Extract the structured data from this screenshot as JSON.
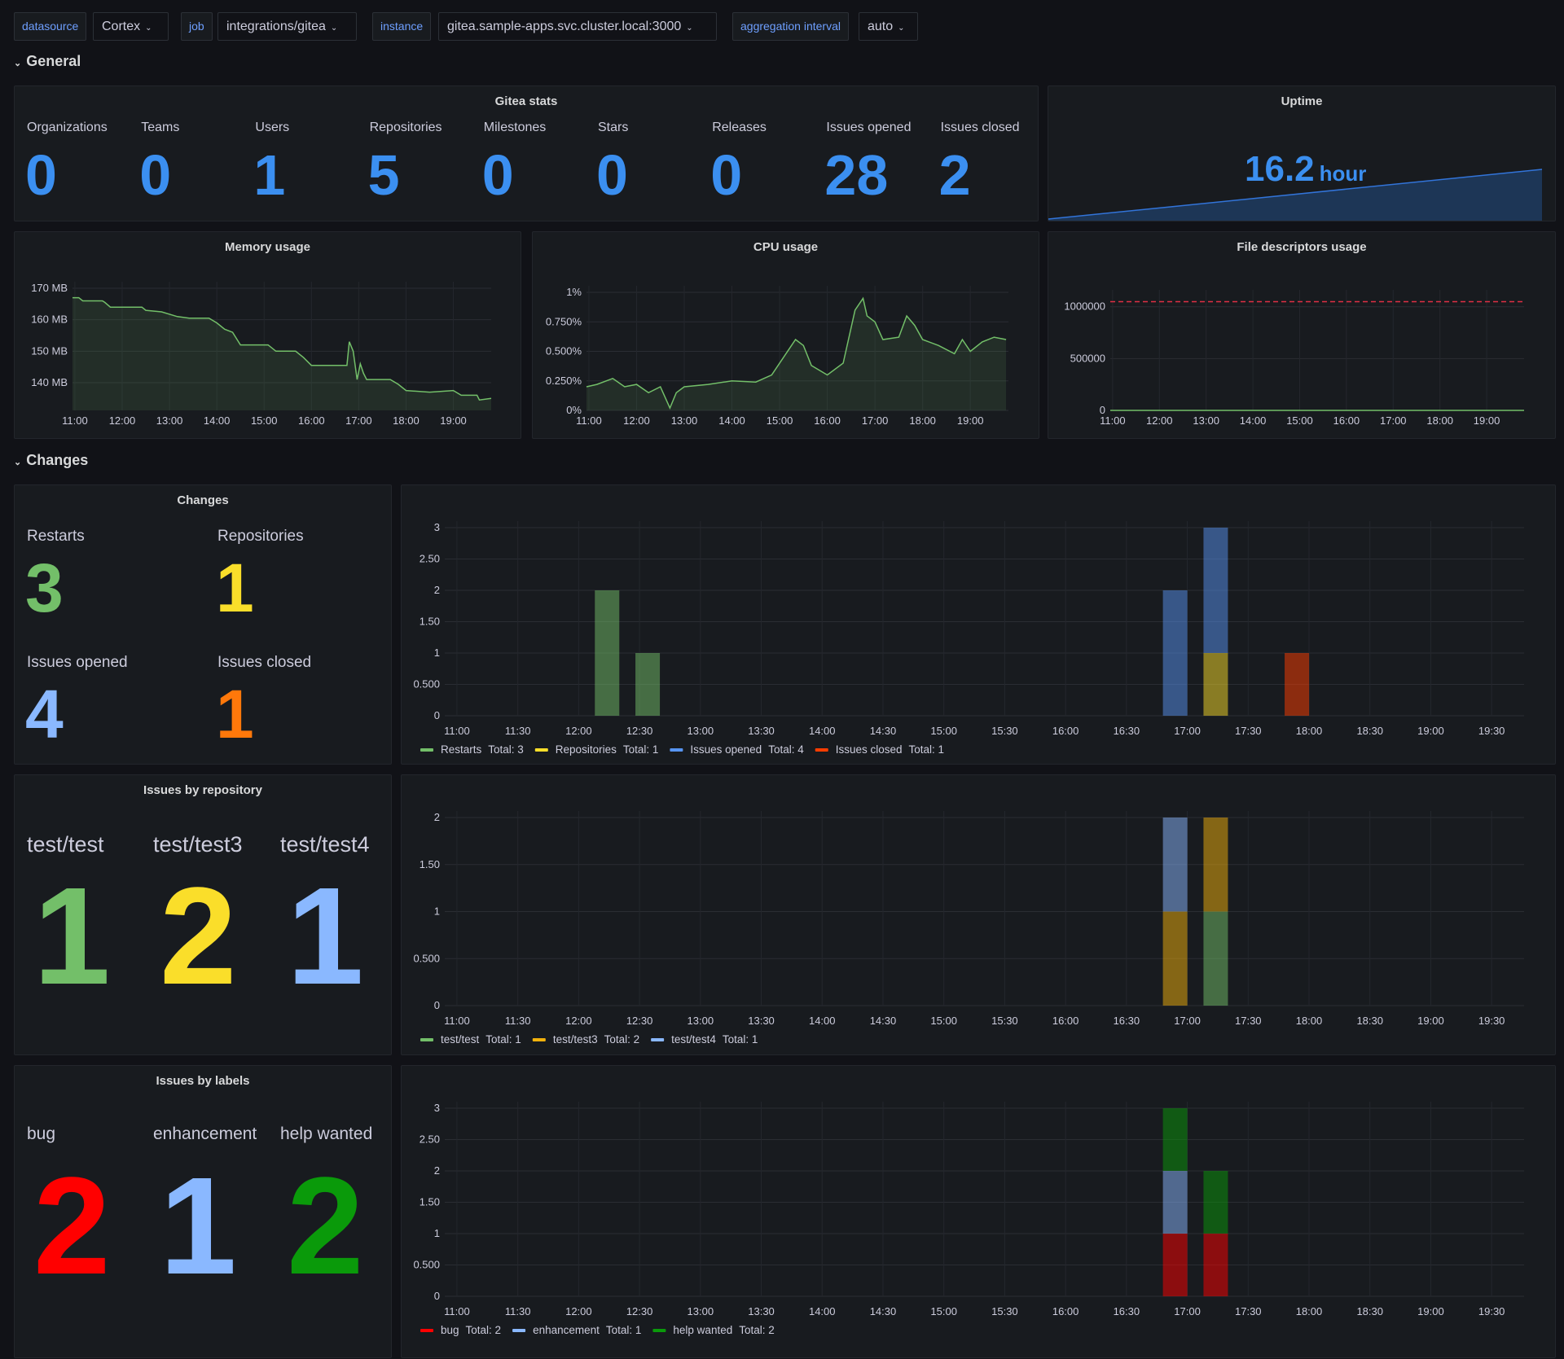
{
  "variables": [
    {
      "label": "datasource",
      "value": "Cortex"
    },
    {
      "label": "job",
      "value": "integrations/gitea"
    },
    {
      "label": "instance",
      "value": "gitea.sample-apps.svc.cluster.local:3000"
    },
    {
      "label": "aggregation interval",
      "value": "auto"
    }
  ],
  "sections": {
    "general": "General",
    "changes": "Changes"
  },
  "gitea_stats": {
    "title": "Gitea stats",
    "color": "#3b8ff0",
    "items": [
      {
        "label": "Organizations",
        "value": "0"
      },
      {
        "label": "Teams",
        "value": "0"
      },
      {
        "label": "Users",
        "value": "1"
      },
      {
        "label": "Repositories",
        "value": "5"
      },
      {
        "label": "Milestones",
        "value": "0"
      },
      {
        "label": "Stars",
        "value": "0"
      },
      {
        "label": "Releases",
        "value": "0"
      },
      {
        "label": "Issues opened",
        "value": "28"
      },
      {
        "label": "Issues closed",
        "value": "2"
      }
    ]
  },
  "uptime": {
    "title": "Uptime",
    "value": "16.2",
    "unit": "hour",
    "color": "#3b8ff0"
  },
  "changes_stat": {
    "title": "Changes",
    "items": [
      {
        "label": "Restarts",
        "value": "3",
        "color": "#73bf69"
      },
      {
        "label": "Repositories",
        "value": "1",
        "color": "#fade2a"
      },
      {
        "label": "Issues opened",
        "value": "4",
        "color": "#8ab8ff"
      },
      {
        "label": "Issues closed",
        "value": "1",
        "color": "#ff780a"
      }
    ]
  },
  "repo_stat": {
    "title": "Issues by repository",
    "items": [
      {
        "label": "test/test",
        "value": "1",
        "color": "#73bf69"
      },
      {
        "label": "test/test3",
        "value": "2",
        "color": "#fade2a"
      },
      {
        "label": "test/test4",
        "value": "1",
        "color": "#8ab8ff"
      }
    ]
  },
  "labels_stat": {
    "title": "Issues by labels",
    "items": [
      {
        "label": "bug",
        "value": "2",
        "color": "#ff0000"
      },
      {
        "label": "enhancement",
        "value": "1",
        "color": "#8ab8ff"
      },
      {
        "label": "help wanted",
        "value": "2",
        "color": "#0a9a0a"
      }
    ]
  },
  "chart_data": [
    {
      "id": "memory",
      "title": "Memory usage",
      "type": "area",
      "color": "#73bf69",
      "xlim": [
        "10:57",
        "19:48"
      ],
      "ylim": [
        131.2,
        170
      ],
      "yticks": [
        {
          "v": 170,
          "label": "170 MB"
        },
        {
          "v": 160,
          "label": "160 MB"
        },
        {
          "v": 150,
          "label": "150 MB"
        },
        {
          "v": 140,
          "label": "140 MB"
        }
      ],
      "xticks": [
        "11:00",
        "12:00",
        "13:00",
        "14:00",
        "15:00",
        "16:00",
        "17:00",
        "18:00",
        "19:00"
      ],
      "x": [
        "10:57",
        "11:05",
        "11:10",
        "11:35",
        "11:38",
        "11:45",
        "12:25",
        "12:30",
        "12:50",
        "13:10",
        "13:25",
        "13:50",
        "14:00",
        "14:10",
        "14:20",
        "14:30",
        "15:05",
        "15:15",
        "15:40",
        "15:50",
        "16:00",
        "16:45",
        "16:48",
        "16:53",
        "16:58",
        "17:02",
        "17:06",
        "17:10",
        "17:40",
        "17:50",
        "18:00",
        "18:30",
        "19:00",
        "19:10",
        "19:30",
        "19:33",
        "19:48"
      ],
      "values": [
        167,
        167,
        166,
        166,
        165.5,
        164,
        164,
        163,
        162.5,
        161,
        160.5,
        160.5,
        159,
        157,
        156,
        152,
        152,
        150,
        150,
        148,
        145.5,
        145.5,
        153,
        150,
        141,
        146,
        143,
        141,
        141,
        139.5,
        137.5,
        137,
        137.5,
        136,
        136,
        134.5,
        135
      ]
    },
    {
      "id": "cpu",
      "title": "CPU usage",
      "type": "area",
      "color": "#73bf69",
      "xlim": [
        "10:57",
        "19:48"
      ],
      "ylim": [
        0,
        1
      ],
      "yticks": [
        {
          "v": 1,
          "label": "1%"
        },
        {
          "v": 0.75,
          "label": "0.750%"
        },
        {
          "v": 0.5,
          "label": "0.500%"
        },
        {
          "v": 0.25,
          "label": "0.250%"
        },
        {
          "v": 0,
          "label": "0%"
        }
      ],
      "xticks": [
        "11:00",
        "12:00",
        "13:00",
        "14:00",
        "15:00",
        "16:00",
        "17:00",
        "18:00",
        "19:00"
      ],
      "x": [
        "10:57",
        "11:10",
        "11:30",
        "11:45",
        "12:00",
        "12:15",
        "12:30",
        "12:42",
        "12:50",
        "13:00",
        "13:30",
        "14:00",
        "14:30",
        "14:50",
        "15:05",
        "15:20",
        "15:30",
        "15:40",
        "16:00",
        "16:20",
        "16:35",
        "16:45",
        "16:50",
        "17:00",
        "17:10",
        "17:30",
        "17:40",
        "17:50",
        "18:00",
        "18:20",
        "18:40",
        "18:50",
        "19:00",
        "19:15",
        "19:30",
        "19:45"
      ],
      "values": [
        0.2,
        0.22,
        0.27,
        0.2,
        0.22,
        0.15,
        0.2,
        0.02,
        0.15,
        0.2,
        0.22,
        0.25,
        0.24,
        0.3,
        0.45,
        0.6,
        0.55,
        0.38,
        0.3,
        0.4,
        0.85,
        0.95,
        0.8,
        0.75,
        0.6,
        0.62,
        0.8,
        0.72,
        0.6,
        0.55,
        0.48,
        0.6,
        0.5,
        0.58,
        0.62,
        0.6
      ]
    },
    {
      "id": "fd",
      "title": "File descriptors usage",
      "type": "line",
      "color": "#73bf69",
      "threshold": {
        "value": 1048576,
        "color": "#e02f44"
      },
      "xlim": [
        "10:57",
        "19:48"
      ],
      "ylim": [
        0,
        1100000
      ],
      "yticks": [
        {
          "v": 1000000,
          "label": "1000000"
        },
        {
          "v": 500000,
          "label": "500000"
        },
        {
          "v": 0,
          "label": "0"
        }
      ],
      "xticks": [
        "11:00",
        "12:00",
        "13:00",
        "14:00",
        "15:00",
        "16:00",
        "17:00",
        "18:00",
        "19:00"
      ],
      "x": [
        "10:57",
        "19:48"
      ],
      "values": [
        20,
        20
      ]
    },
    {
      "id": "changes",
      "type": "bar",
      "stacked": true,
      "xlim": [
        "10:54",
        "19:46"
      ],
      "ylim": [
        0,
        3
      ],
      "yticks": [
        {
          "v": 3,
          "label": "3"
        },
        {
          "v": 2.5,
          "label": "2.50"
        },
        {
          "v": 2,
          "label": "2"
        },
        {
          "v": 1.5,
          "label": "1.50"
        },
        {
          "v": 1,
          "label": "1"
        },
        {
          "v": 0.5,
          "label": "0.500"
        },
        {
          "v": 0,
          "label": "0"
        }
      ],
      "xticks": [
        "11:00",
        "11:30",
        "12:00",
        "12:30",
        "13:00",
        "13:30",
        "14:00",
        "14:30",
        "15:00",
        "15:30",
        "16:00",
        "16:30",
        "17:00",
        "17:30",
        "18:00",
        "18:30",
        "19:00",
        "19:30"
      ],
      "x": [
        "12:14",
        "12:34",
        "16:54",
        "17:14",
        "17:54"
      ],
      "series": [
        {
          "name": "Restarts",
          "total": "Total: 3",
          "color": "#73bf69",
          "values": [
            2,
            1,
            0,
            0,
            0
          ]
        },
        {
          "name": "Repositories",
          "total": "Total: 1",
          "color": "#fade2a",
          "values": [
            0,
            0,
            0,
            1,
            0
          ]
        },
        {
          "name": "Issues opened",
          "total": "Total: 4",
          "color": "#5794f2",
          "values": [
            0,
            0,
            2,
            2,
            0
          ]
        },
        {
          "name": "Issues closed",
          "total": "Total: 1",
          "color": "#ff3d00",
          "values": [
            0,
            0,
            0,
            0,
            1
          ]
        }
      ]
    },
    {
      "id": "repos",
      "type": "bar",
      "stacked": true,
      "xlim": [
        "10:54",
        "19:46"
      ],
      "ylim": [
        0,
        2
      ],
      "yticks": [
        {
          "v": 2,
          "label": "2"
        },
        {
          "v": 1.5,
          "label": "1.50"
        },
        {
          "v": 1,
          "label": "1"
        },
        {
          "v": 0.5,
          "label": "0.500"
        },
        {
          "v": 0,
          "label": "0"
        }
      ],
      "xticks": [
        "11:00",
        "11:30",
        "12:00",
        "12:30",
        "13:00",
        "13:30",
        "14:00",
        "14:30",
        "15:00",
        "15:30",
        "16:00",
        "16:30",
        "17:00",
        "17:30",
        "18:00",
        "18:30",
        "19:00",
        "19:30"
      ],
      "x": [
        "16:54",
        "17:14"
      ],
      "series": [
        {
          "name": "test/test",
          "total": "Total: 1",
          "color": "#73bf69",
          "values": [
            0,
            1
          ]
        },
        {
          "name": "test/test3",
          "total": "Total: 2",
          "color": "#f2b20c",
          "values": [
            1,
            1
          ]
        },
        {
          "name": "test/test4",
          "total": "Total: 1",
          "color": "#8ab8ff",
          "values": [
            1,
            0
          ]
        }
      ]
    },
    {
      "id": "labels",
      "type": "bar",
      "stacked": true,
      "xlim": [
        "10:54",
        "19:46"
      ],
      "ylim": [
        0,
        3
      ],
      "yticks": [
        {
          "v": 3,
          "label": "3"
        },
        {
          "v": 2.5,
          "label": "2.50"
        },
        {
          "v": 2,
          "label": "2"
        },
        {
          "v": 1.5,
          "label": "1.50"
        },
        {
          "v": 1,
          "label": "1"
        },
        {
          "v": 0.5,
          "label": "0.500"
        },
        {
          "v": 0,
          "label": "0"
        }
      ],
      "xticks": [
        "11:00",
        "11:30",
        "12:00",
        "12:30",
        "13:00",
        "13:30",
        "14:00",
        "14:30",
        "15:00",
        "15:30",
        "16:00",
        "16:30",
        "17:00",
        "17:30",
        "18:00",
        "18:30",
        "19:00",
        "19:30"
      ],
      "x": [
        "16:54",
        "17:14"
      ],
      "series": [
        {
          "name": "bug",
          "total": "Total: 2",
          "color": "#ff0000",
          "values": [
            1,
            1
          ]
        },
        {
          "name": "enhancement",
          "total": "Total: 1",
          "color": "#8ab8ff",
          "values": [
            1,
            0
          ]
        },
        {
          "name": "help wanted",
          "total": "Total: 2",
          "color": "#0a9a0a",
          "values": [
            1,
            1
          ]
        }
      ]
    }
  ]
}
